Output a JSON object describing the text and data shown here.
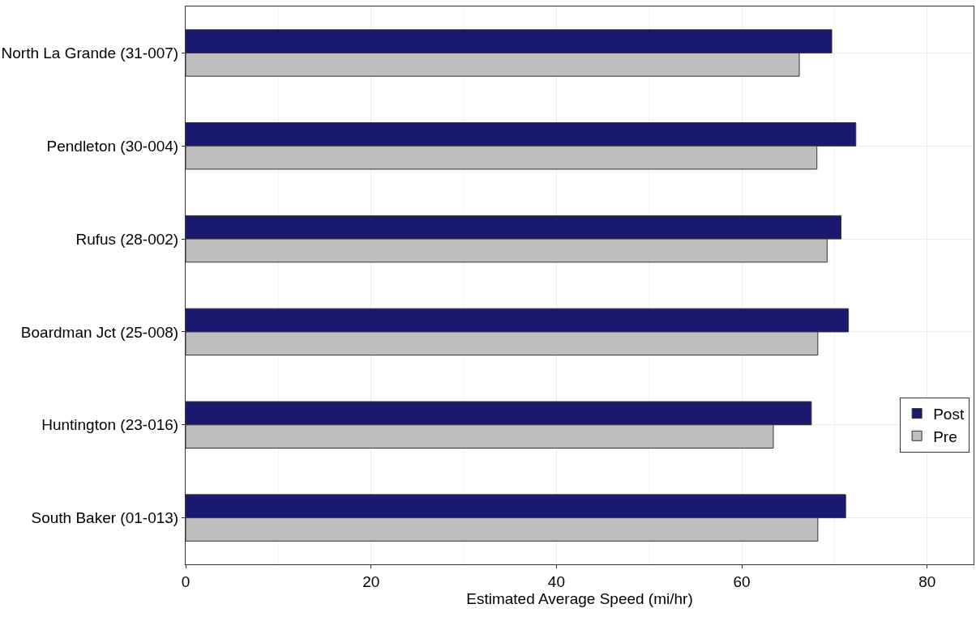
{
  "chart_data": {
    "type": "bar",
    "orientation": "horizontal",
    "xlabel": "Estimated Average Speed (mi/hr)",
    "categories": [
      "North La Grande (31-007)",
      "Pendleton (30-004)",
      "Rufus (28-002)",
      "Boardman Jct (25-008)",
      "Huntington (23-016)",
      "South Baker (01-013)"
    ],
    "series": [
      {
        "name": "Post",
        "color": "#191970",
        "values": [
          69.7,
          72.3,
          70.7,
          71.5,
          67.5,
          71.2
        ]
      },
      {
        "name": "Pre",
        "color": "#bebebe",
        "values": [
          66.2,
          68.1,
          69.2,
          68.2,
          63.4,
          68.2
        ]
      }
    ],
    "xlim": [
      0,
      85
    ],
    "xticks": [
      0,
      20,
      40,
      60,
      80
    ],
    "grid": true,
    "legend": "right"
  }
}
